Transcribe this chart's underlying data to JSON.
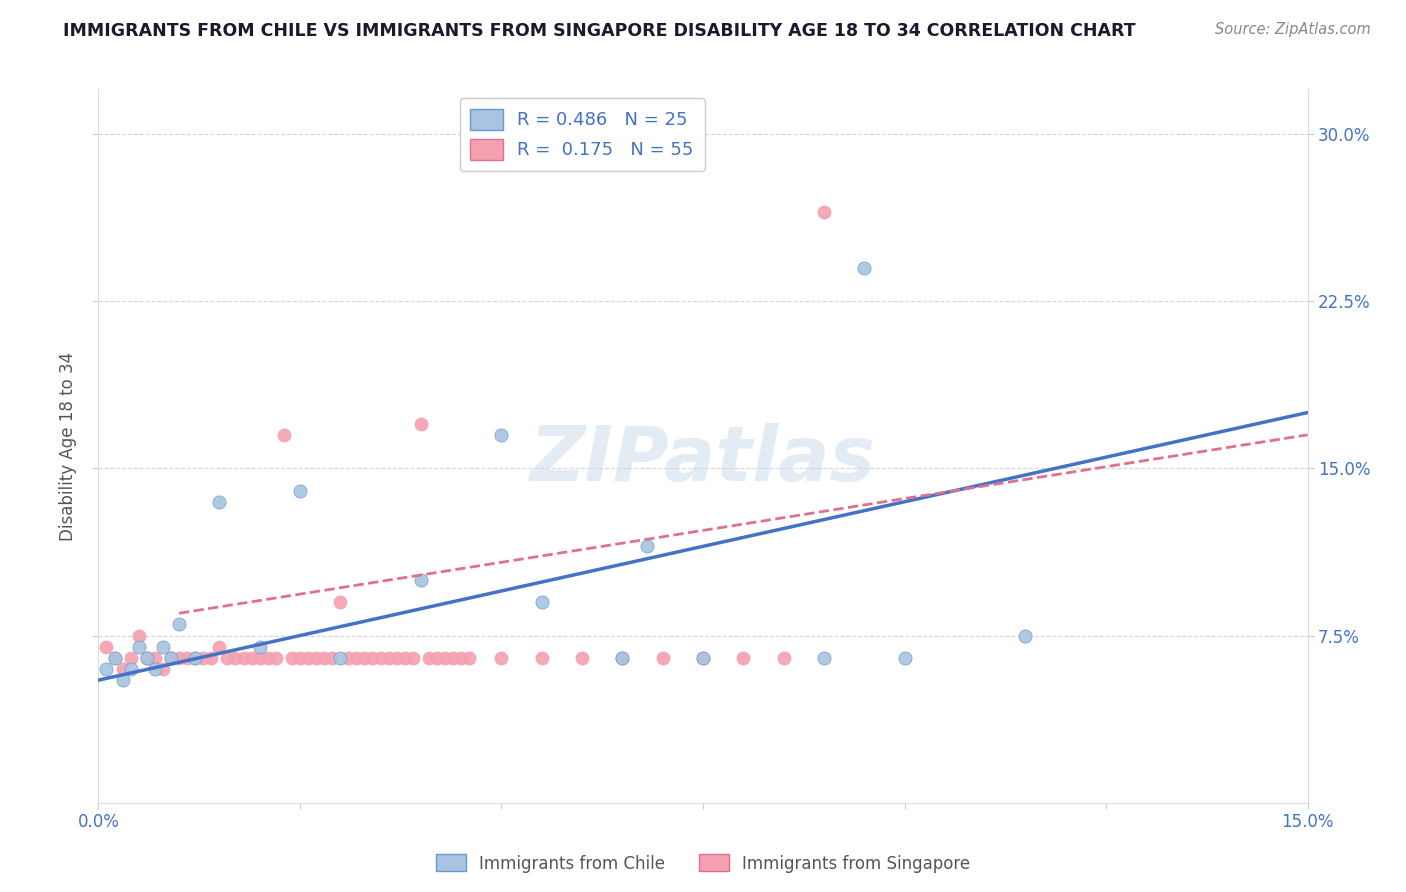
{
  "title": "IMMIGRANTS FROM CHILE VS IMMIGRANTS FROM SINGAPORE DISABILITY AGE 18 TO 34 CORRELATION CHART",
  "source": "Source: ZipAtlas.com",
  "ylabel": "Disability Age 18 to 34",
  "xlim": [
    0.0,
    0.15
  ],
  "ylim": [
    0.0,
    0.32
  ],
  "xticks": [
    0.0,
    0.15
  ],
  "xticklabels": [
    "0.0%",
    "15.0%"
  ],
  "yticks": [
    0.075,
    0.15,
    0.225,
    0.3
  ],
  "yticklabels": [
    "7.5%",
    "15.0%",
    "22.5%",
    "30.0%"
  ],
  "chile_color": "#a8c4e0",
  "chile_edge_color": "#6699cc",
  "singapore_color": "#f4a0b0",
  "singapore_edge_color": "#e07090",
  "chile_R": 0.486,
  "chile_N": 25,
  "singapore_R": 0.175,
  "singapore_N": 55,
  "chile_scatter_x": [
    0.001,
    0.002,
    0.003,
    0.004,
    0.005,
    0.006,
    0.007,
    0.008,
    0.009,
    0.01,
    0.012,
    0.015,
    0.02,
    0.025,
    0.03,
    0.04,
    0.05,
    0.055,
    0.065,
    0.068,
    0.075,
    0.09,
    0.095,
    0.1,
    0.115
  ],
  "chile_scatter_y": [
    0.06,
    0.065,
    0.055,
    0.06,
    0.07,
    0.065,
    0.06,
    0.07,
    0.065,
    0.08,
    0.065,
    0.135,
    0.07,
    0.14,
    0.065,
    0.1,
    0.165,
    0.09,
    0.065,
    0.115,
    0.065,
    0.065,
    0.24,
    0.065,
    0.075
  ],
  "singapore_scatter_x": [
    0.001,
    0.002,
    0.003,
    0.004,
    0.005,
    0.006,
    0.007,
    0.008,
    0.009,
    0.01,
    0.011,
    0.012,
    0.013,
    0.014,
    0.015,
    0.016,
    0.017,
    0.018,
    0.019,
    0.02,
    0.021,
    0.022,
    0.023,
    0.024,
    0.025,
    0.026,
    0.027,
    0.028,
    0.029,
    0.03,
    0.031,
    0.032,
    0.033,
    0.034,
    0.035,
    0.036,
    0.037,
    0.038,
    0.039,
    0.04,
    0.041,
    0.042,
    0.043,
    0.044,
    0.045,
    0.046,
    0.05,
    0.055,
    0.06,
    0.065,
    0.07,
    0.075,
    0.08,
    0.085,
    0.09
  ],
  "singapore_scatter_y": [
    0.07,
    0.065,
    0.06,
    0.065,
    0.075,
    0.065,
    0.065,
    0.06,
    0.065,
    0.065,
    0.065,
    0.065,
    0.065,
    0.065,
    0.07,
    0.065,
    0.065,
    0.065,
    0.065,
    0.065,
    0.065,
    0.065,
    0.165,
    0.065,
    0.065,
    0.065,
    0.065,
    0.065,
    0.065,
    0.09,
    0.065,
    0.065,
    0.065,
    0.065,
    0.065,
    0.065,
    0.065,
    0.065,
    0.065,
    0.17,
    0.065,
    0.065,
    0.065,
    0.065,
    0.065,
    0.065,
    0.065,
    0.065,
    0.065,
    0.065,
    0.065,
    0.065,
    0.065,
    0.065,
    0.265
  ],
  "chile_line_x": [
    0.0,
    0.15
  ],
  "chile_line_y": [
    0.055,
    0.175
  ],
  "singapore_line_x": [
    0.01,
    0.15
  ],
  "singapore_line_y": [
    0.085,
    0.165
  ],
  "watermark": "ZIPatlas",
  "background_color": "#ffffff",
  "grid_color": "#cccccc",
  "title_color": "#1a1a2e",
  "axis_label_color": "#555555",
  "tick_label_color": "#4472c4"
}
